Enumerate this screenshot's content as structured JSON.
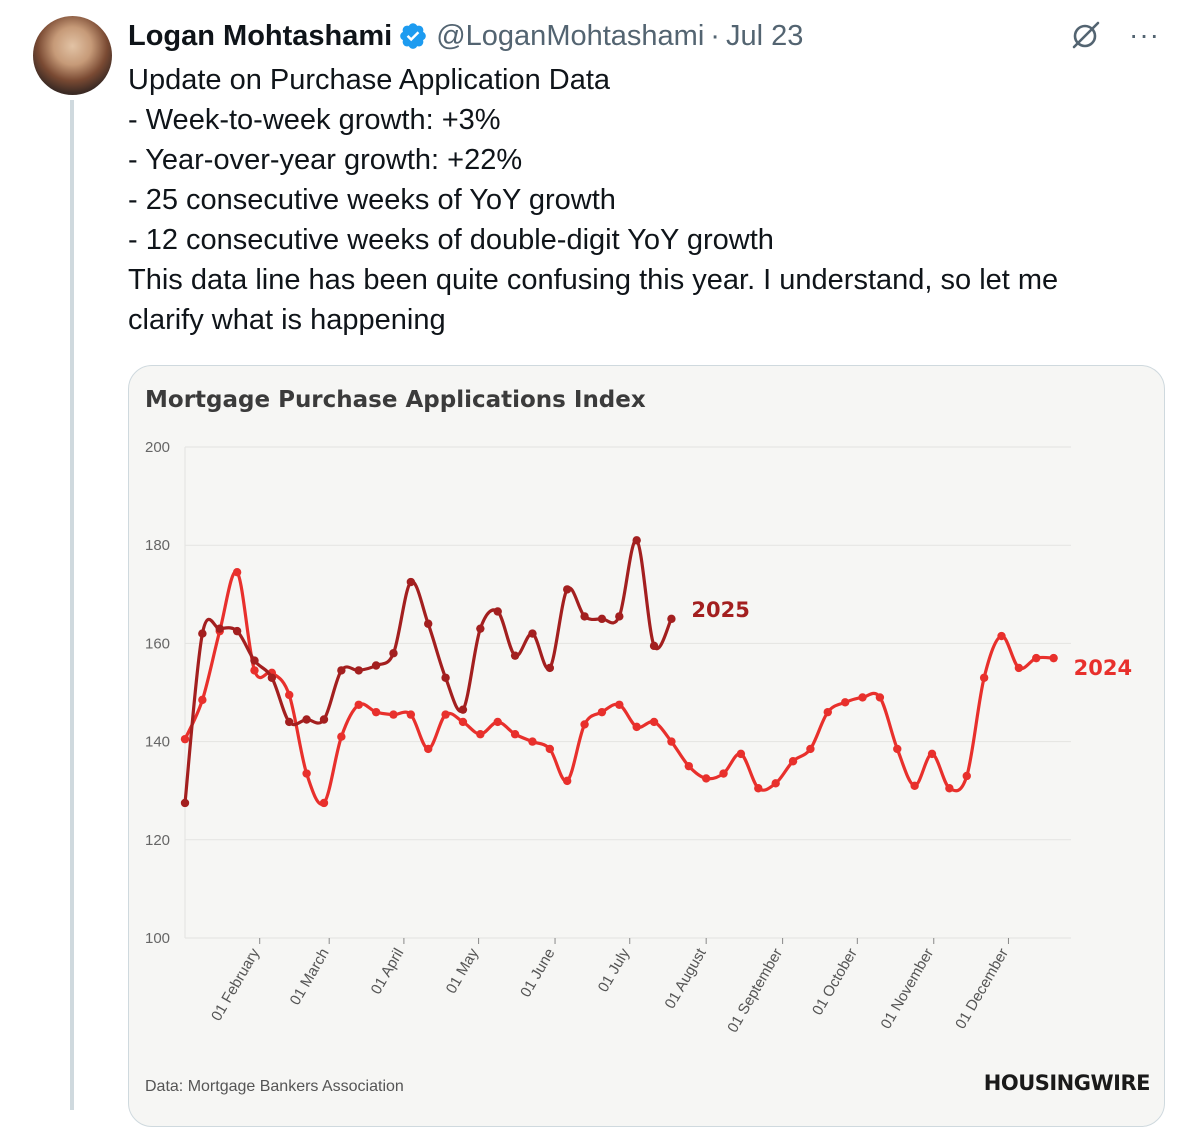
{
  "tweet": {
    "author_name": "Logan Mohtashami",
    "handle": "@LoganMohtashami",
    "separator": "·",
    "date": "Jul 23",
    "lines": [
      "Update on Purchase Application Data",
      "- Week-to-week growth: +3%",
      "- Year-over-year growth: +22%",
      "- 25 consecutive weeks of YoY growth",
      "- 12 consecutive weeks of double-digit YoY growth",
      "This data line has been quite confusing this year. I understand, so let me",
      "clarify what is happening"
    ],
    "icons": {
      "verified": "verified-badge-icon",
      "grok": "grok-icon",
      "more": "more-icon"
    },
    "more_glyph": "···"
  },
  "colors": {
    "series_2025": "#a31f1f",
    "series_2024": "#e8302c",
    "verified": "#1d9bf0",
    "grid": "#e3e3e1"
  },
  "chart_data": {
    "type": "line",
    "title": "Mortgage Purchase Applications Index",
    "source": "Data: Mortgage Bankers Association",
    "brand": "HOUSINGWIRE",
    "ylim": [
      100,
      200
    ],
    "yticks": [
      100,
      120,
      140,
      160,
      180,
      200
    ],
    "grid": true,
    "x_unit": "weeks from first week of January",
    "xticks": [
      {
        "label": "01 February",
        "week": 4.3
      },
      {
        "label": "01 March",
        "week": 8.3
      },
      {
        "label": "01 April",
        "week": 12.6
      },
      {
        "label": "01 May",
        "week": 16.9
      },
      {
        "label": "01 June",
        "week": 21.3
      },
      {
        "label": "01 July",
        "week": 25.6
      },
      {
        "label": "01 August",
        "week": 30.0
      },
      {
        "label": "01 September",
        "week": 34.4
      },
      {
        "label": "01 October",
        "week": 38.7
      },
      {
        "label": "01 November",
        "week": 43.1
      },
      {
        "label": "01 December",
        "week": 47.4
      }
    ],
    "series": [
      {
        "name": "2025",
        "start_week": 0,
        "values": [
          127.5,
          162,
          163,
          162.5,
          156.5,
          153,
          144,
          144.5,
          144.5,
          154.5,
          154.5,
          155.5,
          158,
          172.5,
          164,
          153,
          146.5,
          163,
          166.5,
          157.5,
          162,
          155,
          171,
          165.5,
          165,
          165.5,
          181,
          159.5,
          165
        ]
      },
      {
        "name": "2024",
        "start_week": 0,
        "values": [
          140.5,
          148.5,
          162.5,
          174.5,
          154.5,
          154,
          149.5,
          133.5,
          127.5,
          141,
          147.5,
          146,
          145.5,
          145.5,
          138.5,
          145.5,
          144,
          141.5,
          144,
          141.5,
          140,
          138.5,
          132,
          143.5,
          146,
          147.5,
          143,
          144,
          140,
          135,
          132.5,
          133.5,
          137.5,
          130.5,
          131.5,
          136,
          138.5,
          146,
          148,
          149,
          149,
          138.5,
          131,
          137.5,
          130.5,
          133,
          153,
          161.5,
          155,
          157,
          157
        ]
      }
    ]
  }
}
